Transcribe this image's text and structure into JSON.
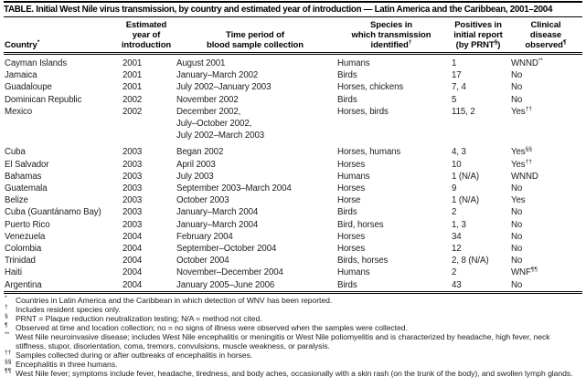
{
  "title": "TABLE. Initial West Nile virus transmission, by country and estimated year of introduction — Latin America and the Caribbean, 2001–2004",
  "table": {
    "headers": [
      {
        "id": "country",
        "lines": [
          "Country*"
        ]
      },
      {
        "id": "year",
        "lines": [
          "Estimated",
          "year of",
          "introduction"
        ]
      },
      {
        "id": "time-period",
        "lines": [
          "Time period of",
          "blood sample collection"
        ]
      },
      {
        "id": "species",
        "lines": [
          "Species in",
          "which transmission",
          "identified†"
        ]
      },
      {
        "id": "positives",
        "lines": [
          "Positives in",
          "initial report",
          "(by PRNT§)"
        ]
      },
      {
        "id": "clinical",
        "lines": [
          "Clinical",
          "disease",
          "observed¶"
        ]
      }
    ],
    "rows": [
      [
        "Cayman Islands",
        "2001",
        "August 2001",
        "Humans",
        "1",
        "WNND**"
      ],
      [
        "Jamaica",
        "2001",
        "January–March 2002",
        "Birds",
        "17",
        "No"
      ],
      [
        "Guadaloupe",
        "2001",
        "July 2002–January 2003",
        "Horses, chickens",
        "7, 4",
        "No"
      ],
      [
        "Dominican Republic",
        "2002",
        "November 2002",
        "Birds",
        "5",
        "No"
      ],
      [
        "Mexico",
        "2002",
        "December 2002,\nJuly–October 2002,\nJuly 2002–March 2003",
        "Horses, birds",
        "115, 2",
        "Yes††"
      ],
      [
        "Cuba",
        "2003",
        "Began 2002",
        "Horses, humans",
        "4, 3",
        "Yes§§"
      ],
      [
        "El Salvador",
        "2003",
        "April 2003",
        "Horses",
        "10",
        "Yes††"
      ],
      [
        "Bahamas",
        "2003",
        "July 2003",
        "Humans",
        "1 (N/A)",
        "WNND"
      ],
      [
        "Guatemala",
        "2003",
        "September 2003–March 2004",
        "Horses",
        "9",
        "No"
      ],
      [
        "Belize",
        "2003",
        "October 2003",
        "Horse",
        "1 (N/A)",
        "Yes"
      ],
      [
        "Cuba (Guantánamo Bay)",
        "2003",
        "January–March 2004",
        "Birds",
        "2",
        "No"
      ],
      [
        "Puerto Rico",
        "2003",
        "January–March 2004",
        "Bird, horses",
        "1, 3",
        "No"
      ],
      [
        "Venezuela",
        "2004",
        "February 2004",
        "Horses",
        "34",
        "No"
      ],
      [
        "Colombia",
        "2004",
        "September–October 2004",
        "Horses",
        "12",
        "No"
      ],
      [
        "Trinidad",
        "2004",
        "October 2004",
        "Birds, horses",
        "2, 8 (N/A)",
        "No"
      ],
      [
        "Haiti",
        "2004",
        "November–December 2004",
        "Humans",
        "2",
        "WNF¶¶"
      ],
      [
        "Argentina",
        "2004",
        "January 2005–June 2006",
        "Birds",
        "43",
        "No"
      ]
    ]
  },
  "footnotes": [
    {
      "marker": "*",
      "text": "Countries in Latin America and the Caribbean in which detection of WNV has been reported."
    },
    {
      "marker": "†",
      "text": "Includes resident species only."
    },
    {
      "marker": "§",
      "text": "PRNT = Plaque reduction neutralization testing; N/A = method not cited."
    },
    {
      "marker": "¶",
      "text": "Observed at time and location collection; no = no signs of illness were observed when the samples were collected."
    },
    {
      "marker": "**",
      "text": "West Nile neuroinvasive disease; includes West Nile encephalitis or meningitis or West Nile poliomyelitis and is characterized by headache, high fever, neck stiffness, stupor, disorientation, coma, tremors, convulsions, muscle weakness, or paralysis."
    },
    {
      "marker": "††",
      "text": "Samples collected during or after outbreaks of encephalitis in horses."
    },
    {
      "marker": "§§",
      "text": "Encephalitis in three humans."
    },
    {
      "marker": "¶¶",
      "text": "West Nile fever; symptoms include fever, headache, tiredness, and body aches, occasionally with a skin rash (on the trunk of the body), and swollen lymph glands."
    }
  ]
}
